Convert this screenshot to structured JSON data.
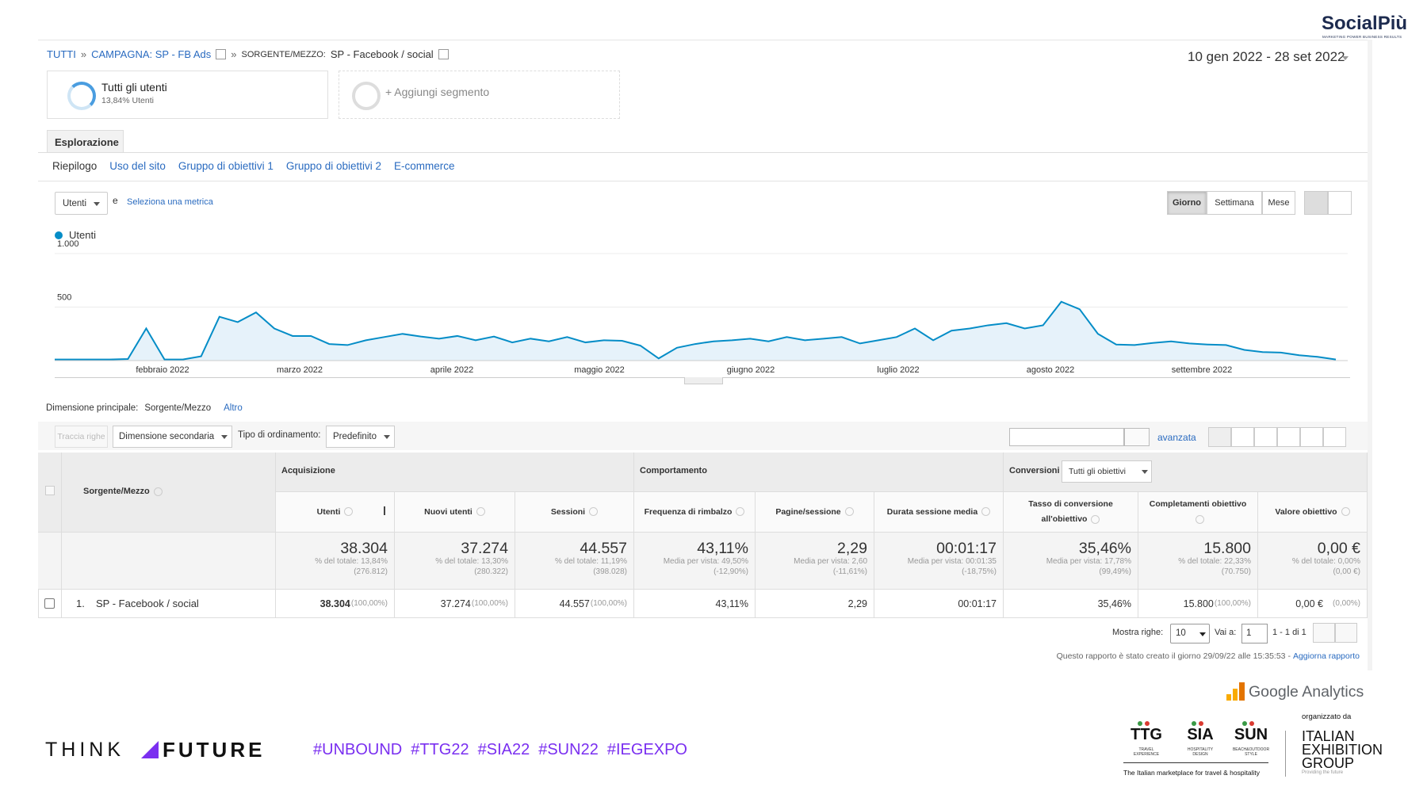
{
  "header": {
    "brand": "SocialPiù",
    "brand_tagline": "MARKETING POWER BUSINESS RESULTS"
  },
  "breadcrumb": {
    "root": "TUTTI",
    "separator": "»",
    "campaign": "CAMPAGNA: SP - FB Ads",
    "dimension": "SORGENTE/MEZZO:",
    "source": "SP - Facebook / social"
  },
  "date_range": "10 gen 2022 - 28 set 2022",
  "segments": [
    {
      "name": "Tutti gli utenti",
      "detail": "13,84% Utenti"
    },
    {
      "name": "+ Aggiungi segmento"
    }
  ],
  "tab": "Esplorazione",
  "subtabs": [
    "Riepilogo",
    "Uso del sito",
    "Gruppo di obiettivi 1",
    "Gruppo di obiettivi 2",
    "E-commerce"
  ],
  "metric_selector": {
    "metric": "Utenti",
    "conjunction": "e",
    "add": "Seleziona una metrica"
  },
  "granularity": [
    "Giorno",
    "Settimana",
    "Mese"
  ],
  "chart": {
    "type": "line",
    "legend": "Utenti",
    "color": "#058dc7",
    "ylim": [
      0,
      1000
    ],
    "yticks": [
      {
        "value": 1000,
        "label": "1.000"
      },
      500
    ],
    "grid": true,
    "x_labels": [
      "febbraio 2022",
      "marzo 2022",
      "aprile 2022",
      "maggio 2022",
      "giugno 2022",
      "luglio 2022",
      "agosto 2022",
      "settembre 2022"
    ],
    "values": [
      10,
      10,
      10,
      10,
      15,
      300,
      10,
      10,
      40,
      410,
      360,
      450,
      300,
      230,
      230,
      155,
      145,
      190,
      220,
      250,
      225,
      205,
      230,
      190,
      225,
      170,
      205,
      180,
      220,
      170,
      190,
      185,
      140,
      20,
      120,
      155,
      180,
      190,
      205,
      180,
      220,
      190,
      205,
      220,
      160,
      190,
      220,
      300,
      190,
      280,
      300,
      330,
      350,
      300,
      330,
      550,
      480,
      250,
      150,
      145,
      165,
      180,
      160,
      150,
      145,
      100,
      80,
      75,
      50,
      35,
      10
    ]
  },
  "dimension": {
    "label": "Dimensione principale:",
    "value": "Sorgente/Mezzo",
    "other": "Altro"
  },
  "controls": {
    "plot_rows": "Traccia righe",
    "secondary": "Dimensione secondaria",
    "sort_label": "Tipo di ordinamento:",
    "sort": "Predefinito",
    "advanced": "avanzata"
  },
  "table": {
    "groups": [
      "Acquisizione",
      "Comportamento",
      "Conversioni"
    ],
    "goal_filter": "Tutti gli obiettivi",
    "dimension_header": "Sorgente/Mezzo",
    "columns": [
      "Utenti",
      "Nuovi utenti",
      "Sessioni",
      "Frequenza di rimbalzo",
      "Pagine/sessione",
      "Durata sessione media",
      "Tasso di conversione all'obiettivo",
      "Completamenti obiettivo",
      "Valore obiettivo"
    ],
    "totals": [
      {
        "value": "38.304",
        "share": "% del totale: 13,84%",
        "reference": "(276.812)"
      },
      {
        "value": "37.274",
        "share": "% del totale: 13,30%",
        "reference": "(280.322)"
      },
      {
        "value": "44.557",
        "share": "% del totale: 11,19%",
        "reference": "(398.028)"
      },
      {
        "value": "43,11%",
        "share": "Media per vista: 49,50%",
        "reference": "(-12,90%)"
      },
      {
        "value": "2,29",
        "share": "Media per vista: 2,60",
        "reference": "(-11,61%)"
      },
      {
        "value": "00:01:17",
        "share": "Media per vista: 00:01:35",
        "reference": "(-18,75%)"
      },
      {
        "value": "35,46%",
        "share": "Media per vista: 17,78%",
        "reference": "(99,49%)"
      },
      {
        "value": "15.800",
        "share": "% del totale: 22,33%",
        "reference": "(70.750)"
      },
      {
        "value": "0,00 €",
        "share": "% del totale: 0,00%",
        "reference": "(0,00 €)"
      }
    ],
    "rows": [
      {
        "index": "1.",
        "name": "SP - Facebook / social",
        "cells": [
          {
            "value": "38.304",
            "share": "(100,00%)"
          },
          {
            "value": "37.274",
            "share": "(100,00%)"
          },
          {
            "value": "44.557",
            "share": "(100,00%)"
          },
          {
            "value": "43,11%"
          },
          {
            "value": "2,29"
          },
          {
            "value": "00:01:17"
          },
          {
            "value": "35,46%"
          },
          {
            "value": "15.800",
            "share": "(100,00%)"
          },
          {
            "value": "0,00 €",
            "share": "(0,00%)"
          }
        ]
      }
    ]
  },
  "pagination": {
    "rows_label": "Mostra righe:",
    "rows_value": "10",
    "goto_label": "Vai a:",
    "goto_value": "1",
    "range": "1 - 1 di 1"
  },
  "report_note": {
    "text": "Questo rapporto è stato creato il giorno 29/09/22 alle 15:35:53 -",
    "link": "Aggiorna rapporto"
  },
  "footer": {
    "analytics": "Google Analytics",
    "think": "THINK",
    "future": "FUTURE",
    "hashtags": [
      "#UNBOUND",
      "#TTG22",
      "#SIA22",
      "#SUN22",
      "#IEGEXPO"
    ],
    "fairs": [
      {
        "name": "TTG",
        "sub": [
          "TRAVEL",
          "EXPERIENCE"
        ]
      },
      {
        "name": "SIA",
        "sub": [
          "HOSPITALITY",
          "DESIGN"
        ]
      },
      {
        "name": "SUN",
        "sub": [
          "BEACH&OUTDOOR",
          "STYLE"
        ]
      }
    ],
    "fairs_tagline": "The Italian marketplace for travel & hospitality",
    "organizer_label": "organizzato da",
    "organizer": [
      "ITALIAN",
      "EXHIBITION",
      "GROUP"
    ],
    "organizer_tagline": "Providing the future"
  }
}
